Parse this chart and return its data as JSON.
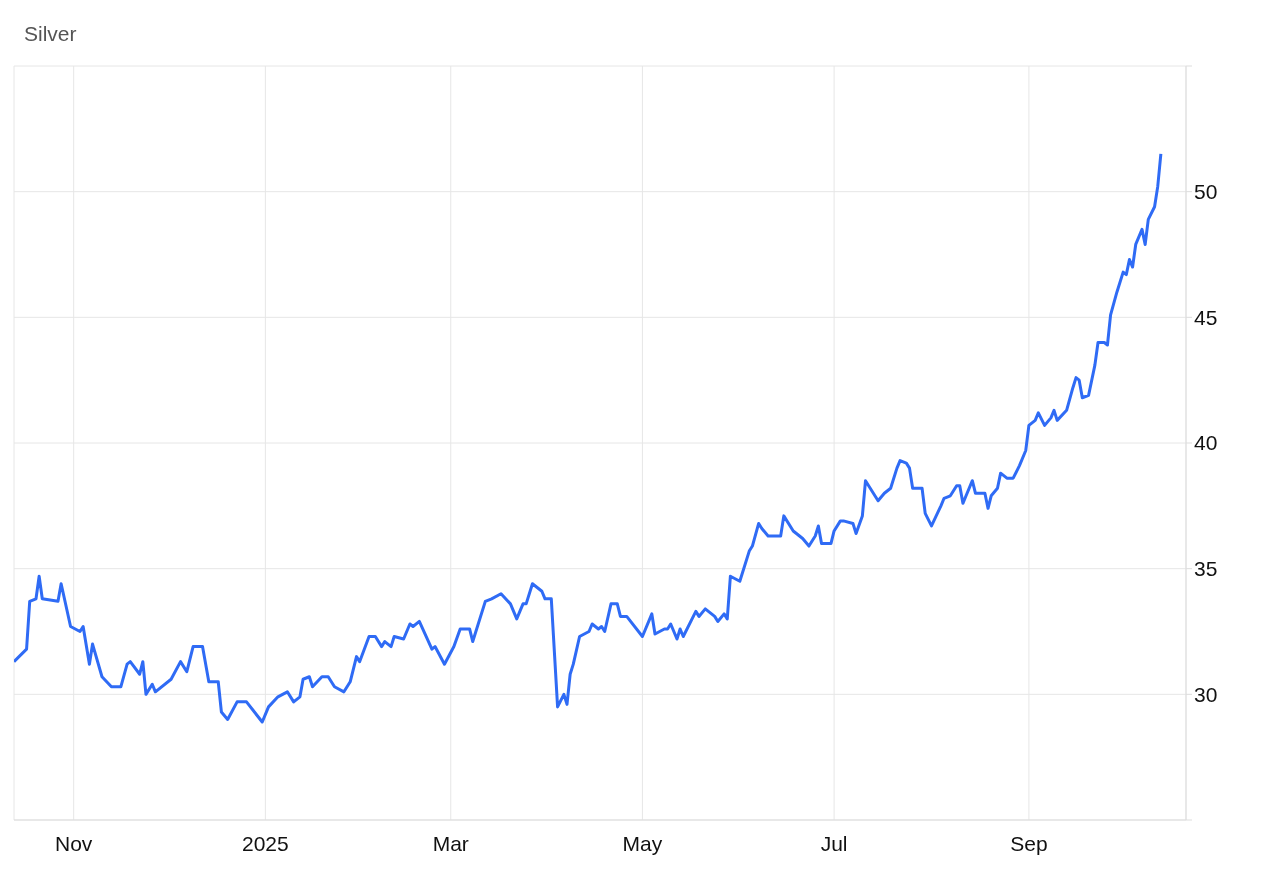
{
  "chart_data": {
    "type": "line",
    "title": "Silver",
    "x": [
      "2024-10-13",
      "2024-10-17",
      "2024-10-18",
      "2024-10-20",
      "2024-10-21",
      "2024-10-22",
      "2024-10-27",
      "2024-10-28",
      "2024-10-31",
      "2024-11-03",
      "2024-11-04",
      "2024-11-06",
      "2024-11-07",
      "2024-11-10",
      "2024-11-13",
      "2024-11-16",
      "2024-11-18",
      "2024-11-19",
      "2024-11-22",
      "2024-11-23",
      "2024-11-24",
      "2024-11-26",
      "2024-11-27",
      "2024-12-02",
      "2024-12-05",
      "2024-12-07",
      "2024-12-09",
      "2024-12-12",
      "2024-12-14",
      "2024-12-17",
      "2024-12-18",
      "2024-12-20",
      "2024-12-23",
      "2024-12-26",
      "2024-12-31",
      "2025-01-02",
      "2025-01-05",
      "2025-01-08",
      "2025-01-10",
      "2025-01-12",
      "2025-01-13",
      "2025-01-15",
      "2025-01-16",
      "2025-01-19",
      "2025-01-21",
      "2025-01-23",
      "2025-01-26",
      "2025-01-28",
      "2025-01-30",
      "2025-01-31",
      "2025-02-03",
      "2025-02-05",
      "2025-02-07",
      "2025-02-08",
      "2025-02-10",
      "2025-02-11",
      "2025-02-14",
      "2025-02-16",
      "2025-02-17",
      "2025-02-19",
      "2025-02-23",
      "2025-02-24",
      "2025-02-27",
      "2025-03-02",
      "2025-03-04",
      "2025-03-07",
      "2025-03-08",
      "2025-03-12",
      "2025-03-14",
      "2025-03-17",
      "2025-03-20",
      "2025-03-22",
      "2025-03-24",
      "2025-03-25",
      "2025-03-27",
      "2025-03-30",
      "2025-03-31",
      "2025-04-02",
      "2025-04-04",
      "2025-04-06",
      "2025-04-07",
      "2025-04-08",
      "2025-04-09",
      "2025-04-11",
      "2025-04-14",
      "2025-04-15",
      "2025-04-17",
      "2025-04-18",
      "2025-04-19",
      "2025-04-21",
      "2025-04-23",
      "2025-04-24",
      "2025-04-26",
      "2025-05-01",
      "2025-05-04",
      "2025-05-05",
      "2025-05-08",
      "2025-05-09",
      "2025-05-10",
      "2025-05-12",
      "2025-05-13",
      "2025-05-14",
      "2025-05-18",
      "2025-05-19",
      "2025-05-21",
      "2025-05-24",
      "2025-05-25",
      "2025-05-27",
      "2025-05-28",
      "2025-05-29",
      "2025-06-01",
      "2025-06-04",
      "2025-06-05",
      "2025-06-07",
      "2025-06-08",
      "2025-06-10",
      "2025-06-14",
      "2025-06-15",
      "2025-06-18",
      "2025-06-21",
      "2025-06-23",
      "2025-06-25",
      "2025-06-26",
      "2025-06-27",
      "2025-06-30",
      "2025-07-01",
      "2025-07-03",
      "2025-07-04",
      "2025-07-07",
      "2025-07-08",
      "2025-07-10",
      "2025-07-11",
      "2025-07-15",
      "2025-07-17",
      "2025-07-19",
      "2025-07-21",
      "2025-07-22",
      "2025-07-24",
      "2025-07-25",
      "2025-07-26",
      "2025-07-29",
      "2025-07-30",
      "2025-08-01",
      "2025-08-04",
      "2025-08-05",
      "2025-08-07",
      "2025-08-09",
      "2025-08-10",
      "2025-08-11",
      "2025-08-12",
      "2025-08-14",
      "2025-08-15",
      "2025-08-18",
      "2025-08-19",
      "2025-08-20",
      "2025-08-22",
      "2025-08-23",
      "2025-08-25",
      "2025-08-27",
      "2025-08-29",
      "2025-08-31",
      "2025-09-01",
      "2025-09-03",
      "2025-09-04",
      "2025-09-06",
      "2025-09-08",
      "2025-09-09",
      "2025-09-10",
      "2025-09-13",
      "2025-09-15",
      "2025-09-16",
      "2025-09-17",
      "2025-09-18",
      "2025-09-20",
      "2025-09-22",
      "2025-09-23",
      "2025-09-25",
      "2025-09-26",
      "2025-09-27",
      "2025-09-29",
      "2025-10-01",
      "2025-10-02",
      "2025-10-03",
      "2025-10-04",
      "2025-10-05",
      "2025-10-07",
      "2025-10-08",
      "2025-10-09",
      "2025-10-11",
      "2025-10-12",
      "2025-10-13"
    ],
    "series": [
      {
        "color": "#2f6bf5",
        "values": [
          31.3,
          31.8,
          33.7,
          33.8,
          34.7,
          33.8,
          33.7,
          34.4,
          32.7,
          32.5,
          32.7,
          31.2,
          32.0,
          30.7,
          30.3,
          30.3,
          31.2,
          31.3,
          30.8,
          31.3,
          30.0,
          30.4,
          30.1,
          30.6,
          31.3,
          30.9,
          31.9,
          31.9,
          30.5,
          30.5,
          29.3,
          29.0,
          29.7,
          29.7,
          28.9,
          29.5,
          29.9,
          30.1,
          29.7,
          29.9,
          30.6,
          30.7,
          30.3,
          30.7,
          30.7,
          30.3,
          30.1,
          30.5,
          31.5,
          31.3,
          32.3,
          32.3,
          31.9,
          32.1,
          31.9,
          32.3,
          32.2,
          32.8,
          32.7,
          32.9,
          31.8,
          31.9,
          31.2,
          31.9,
          32.6,
          32.6,
          32.1,
          33.7,
          33.8,
          34.0,
          33.6,
          33.0,
          33.6,
          33.6,
          34.4,
          34.1,
          33.8,
          33.8,
          29.5,
          30.0,
          29.6,
          30.8,
          31.2,
          32.3,
          32.5,
          32.8,
          32.6,
          32.7,
          32.5,
          33.6,
          33.6,
          33.1,
          33.1,
          32.3,
          33.2,
          32.4,
          32.6,
          32.6,
          32.8,
          32.2,
          32.6,
          32.3,
          33.3,
          33.1,
          33.4,
          33.1,
          32.9,
          33.2,
          33.0,
          34.7,
          34.5,
          35.7,
          35.9,
          36.8,
          36.6,
          36.3,
          36.3,
          37.1,
          36.5,
          36.2,
          35.9,
          36.3,
          36.7,
          36.0,
          36.0,
          36.5,
          36.9,
          36.9,
          36.8,
          36.4,
          37.1,
          38.5,
          37.7,
          38.0,
          38.2,
          39.0,
          39.3,
          39.2,
          39.0,
          38.2,
          38.2,
          37.2,
          36.7,
          37.5,
          37.8,
          37.9,
          38.3,
          38.3,
          37.6,
          37.9,
          38.5,
          38.0,
          38.0,
          37.4,
          37.9,
          38.2,
          38.8,
          38.6,
          38.6,
          39.1,
          39.7,
          40.7,
          40.9,
          41.2,
          40.7,
          41.0,
          41.3,
          40.9,
          41.3,
          42.2,
          42.6,
          42.5,
          41.8,
          41.9,
          43.1,
          44.0,
          44.0,
          43.9,
          45.1,
          46.0,
          46.8,
          46.7,
          47.3,
          47.0,
          47.9,
          48.5,
          47.9,
          48.9,
          49.4,
          50.2,
          51.5
        ]
      }
    ],
    "xlim": [
      "2024-10-13",
      "2025-10-21"
    ],
    "xticks": [
      {
        "value": "2024-11-01",
        "label": "Nov"
      },
      {
        "value": "2025-01-01",
        "label": "2025"
      },
      {
        "value": "2025-03-01",
        "label": "Mar"
      },
      {
        "value": "2025-05-01",
        "label": "May"
      },
      {
        "value": "2025-07-01",
        "label": "Jul"
      },
      {
        "value": "2025-09-01",
        "label": "Sep"
      }
    ],
    "ylim": [
      25,
      55
    ],
    "yticks": [
      {
        "value": 25,
        "label": null
      },
      30,
      35,
      40,
      45,
      50,
      {
        "value": 55,
        "label": null
      }
    ],
    "grid": true,
    "legend": false,
    "marker": "none",
    "line_style": "solid"
  }
}
